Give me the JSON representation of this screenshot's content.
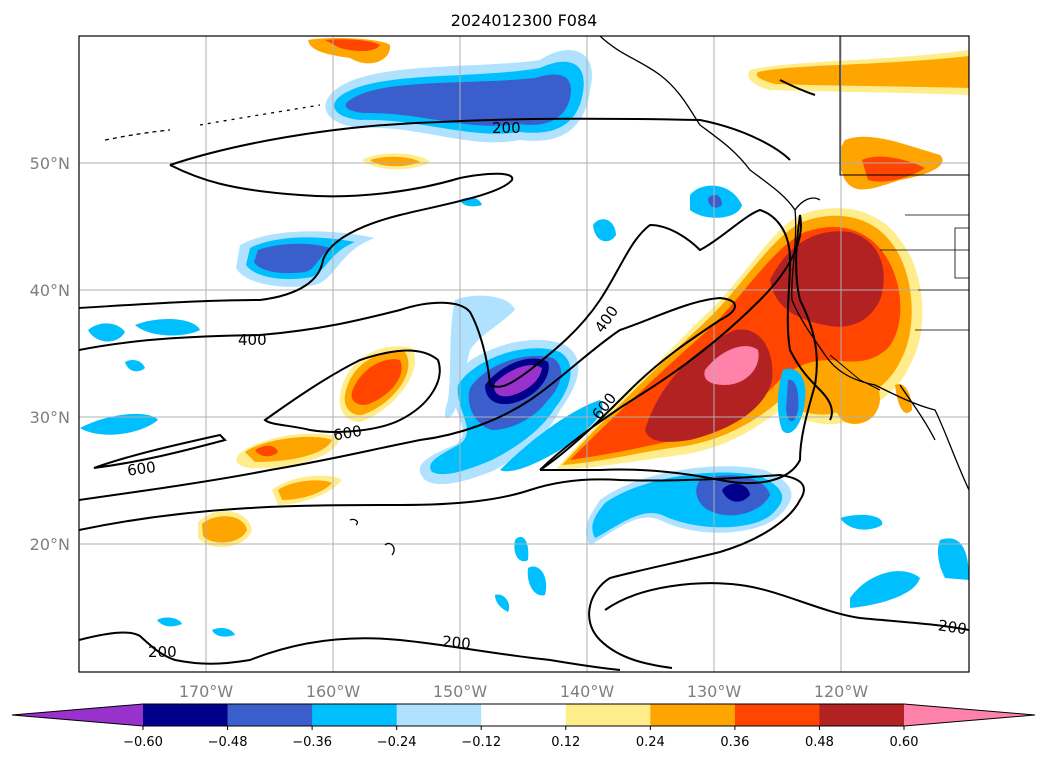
{
  "title": "2024012300 F084",
  "map": {
    "lat_ticks": [
      "20°N",
      "30°N",
      "40°N",
      "50°N"
    ],
    "lon_ticks": [
      "170°W",
      "160°W",
      "150°W",
      "140°W",
      "130°W",
      "120°W"
    ],
    "projection": "lat-lon (Mercator)",
    "extent": {
      "lon_min": -180,
      "lon_max": -110,
      "lat_min": 10,
      "lat_max": 60
    },
    "grid": true,
    "contour_labels": [
      {
        "id": "c200a",
        "text": "200"
      },
      {
        "id": "c400a",
        "text": "400"
      },
      {
        "id": "c400b",
        "text": "400"
      },
      {
        "id": "c600a",
        "text": "600"
      },
      {
        "id": "c600b",
        "text": "600"
      },
      {
        "id": "c600c",
        "text": "600"
      },
      {
        "id": "c200b",
        "text": "200"
      },
      {
        "id": "c200c",
        "text": "200"
      },
      {
        "id": "c200d",
        "text": "200"
      }
    ]
  },
  "colorbar": {
    "ticks": [
      "−0.60",
      "−0.48",
      "−0.36",
      "−0.24",
      "−0.12",
      "0.12",
      "0.24",
      "0.36",
      "0.48",
      "0.60"
    ],
    "colors": [
      "#9932cc",
      "#00008b",
      "#3a5fcd",
      "#00bfff",
      "#b0e2ff",
      "#ffffff",
      "#ffec8b",
      "#ffa500",
      "#ff4500",
      "#b22222",
      "#ff82ab"
    ],
    "extend": "both"
  }
}
